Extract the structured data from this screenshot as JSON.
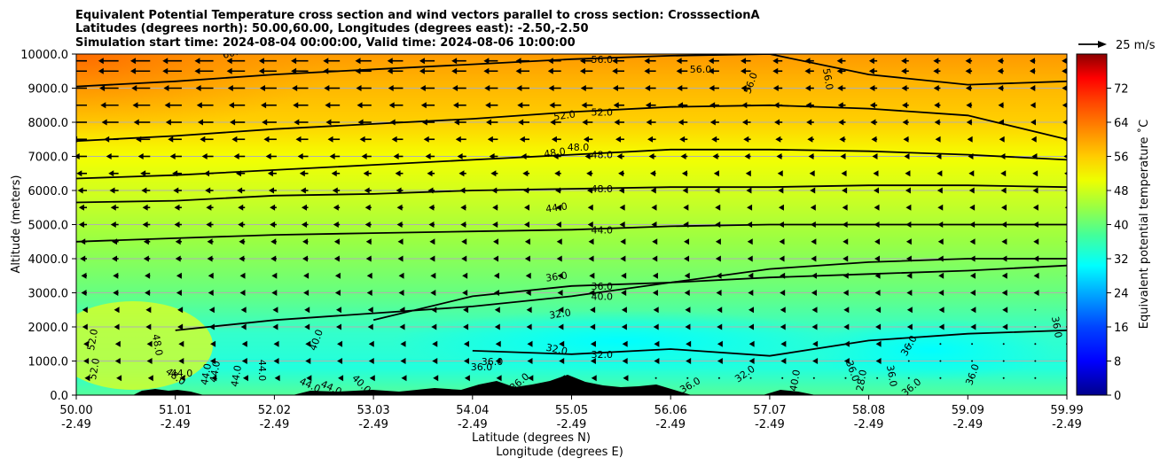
{
  "chart_data": {
    "type": "heatmap",
    "title_lines": [
      "Equivalent Potential Temperature cross section and wind vectors parallel to cross section: CrosssectionA",
      "Latitudes (degrees north): 50.00,60.00, Longitudes (degrees east): -2.50,-2.50",
      "Simulation start time: 2024-08-04 00:00:00, Valid time: 2024-08-06 10:00:00"
    ],
    "ylabel": "Altitude (meters)",
    "xlabel_lines": [
      "Latitude (degrees N)",
      "Longitude (degrees E)"
    ],
    "yticks": [
      "0.0",
      "1000.0",
      "2000.0",
      "3000.0",
      "4000.0",
      "5000.0",
      "6000.0",
      "7000.0",
      "8000.0",
      "9000.0",
      "10000.0"
    ],
    "ylim": [
      0,
      10000
    ],
    "xticks_lat": [
      "50.00",
      "51.01",
      "52.02",
      "53.03",
      "54.04",
      "55.05",
      "56.06",
      "57.07",
      "58.08",
      "59.09",
      "59.99"
    ],
    "xticks_lon": [
      "-2.49",
      "-2.49",
      "-2.49",
      "-2.49",
      "-2.49",
      "-2.49",
      "-2.49",
      "-2.49",
      "-2.49",
      "-2.49",
      "-2.49"
    ],
    "colorbar": {
      "label": "Equivalent potential temperature ˚C",
      "ticks": [
        "0",
        "8",
        "16",
        "24",
        "32",
        "40",
        "48",
        "56",
        "64",
        "72"
      ],
      "range": [
        0,
        80
      ]
    },
    "quiver_key": "25 m/s",
    "contour_levels": [
      {
        "value": 32,
        "label": "32.0",
        "heights": [
          null,
          null,
          null,
          null,
          1300,
          1200,
          1350,
          1150,
          1600,
          1800,
          1900
        ]
      },
      {
        "value": 36,
        "label": "36.0",
        "heights": [
          null,
          null,
          null,
          2200,
          2900,
          3200,
          3300,
          3450,
          3550,
          3650,
          3800
        ]
      },
      {
        "value": 40,
        "label": "40.0",
        "heights": [
          null,
          1900,
          2200,
          2400,
          2600,
          2900,
          3300,
          3700,
          3900,
          4000,
          4000
        ]
      },
      {
        "value": 44,
        "label": "44.0",
        "heights": [
          4500,
          4600,
          4700,
          4750,
          4800,
          4850,
          4950,
          5000,
          5000,
          5000,
          5000
        ]
      },
      {
        "value": 48,
        "label": "48.0",
        "heights": [
          5650,
          5700,
          5850,
          5900,
          6000,
          6050,
          6100,
          6100,
          6150,
          6150,
          6100
        ]
      },
      {
        "value": 48,
        "label": "48.0",
        "heights": [
          6350,
          6450,
          6600,
          6750,
          6900,
          7050,
          7200,
          7200,
          7150,
          7050,
          6900
        ]
      },
      {
        "value": 52,
        "label": "52.0",
        "heights": [
          7450,
          7600,
          7800,
          7950,
          8100,
          8300,
          8450,
          8500,
          8400,
          8200,
          7500
        ]
      },
      {
        "value": 56,
        "label": "56.0",
        "heights": [
          9050,
          9200,
          9400,
          9550,
          9700,
          9850,
          9950,
          10000,
          9400,
          9100,
          9200
        ]
      }
    ],
    "contour_annotations": [
      "60.0",
      "56.0",
      "56.0",
      "56.0",
      "52.0",
      "48.0",
      "48.0",
      "44.0",
      "36.0",
      "32.0",
      "32.0",
      "52.0",
      "52.0",
      "48.0",
      "48.0",
      "44.0",
      "44.0",
      "44.0",
      "44.0",
      "44.0",
      "44.0",
      "44.0",
      "40.0",
      "40.0",
      "36.0",
      "36.0",
      "32.0",
      "40.0",
      "36.0",
      "28.0",
      "36.0",
      "36.0",
      "36.0",
      "36.0",
      "36.0",
      "36.0",
      "36.0"
    ],
    "wind_u_by_level": [
      {
        "z": 9800,
        "u": -0.9
      },
      {
        "z": 9500,
        "u": -0.9
      },
      {
        "z": 9000,
        "u": -0.85
      },
      {
        "z": 8500,
        "u": -0.8
      },
      {
        "z": 8000,
        "u": -0.75
      },
      {
        "z": 7500,
        "u": -0.65
      },
      {
        "z": 7000,
        "u": -0.55
      },
      {
        "z": 6500,
        "u": -0.45
      },
      {
        "z": 6000,
        "u": -0.4
      },
      {
        "z": 5500,
        "u": -0.35
      },
      {
        "z": 5000,
        "u": -0.35
      },
      {
        "z": 4500,
        "u": -0.3
      },
      {
        "z": 4000,
        "u": -0.3
      },
      {
        "z": 3500,
        "u": -0.25
      },
      {
        "z": 3000,
        "u": -0.25
      },
      {
        "z": 2500,
        "u": -0.2
      },
      {
        "z": 2000,
        "u": -0.2
      },
      {
        "z": 1500,
        "u": -0.15
      },
      {
        "z": 1000,
        "u": -0.15
      },
      {
        "z": 500,
        "u": -0.1
      }
    ]
  },
  "colors": {
    "contour_line": "#000000",
    "terrain": "#000000",
    "grid": "#b0b0b0"
  }
}
